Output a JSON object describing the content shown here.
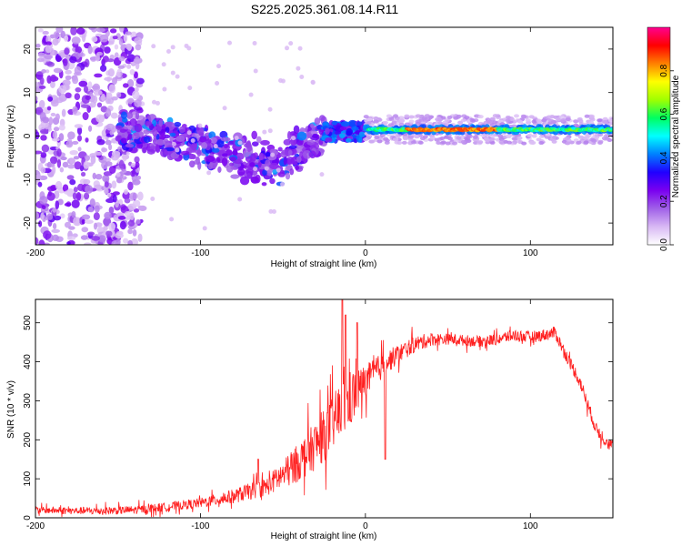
{
  "chart_data": [
    {
      "type": "heatmap",
      "title": "S225.2025.361.08.14.R11",
      "xlabel": "Height of straight line (km)",
      "ylabel": "Frequency (Hz)",
      "xlim": [
        -200,
        150
      ],
      "ylim": [
        -25,
        25
      ],
      "xticks": [
        -200,
        -100,
        0,
        100
      ],
      "yticks": [
        -20,
        -10,
        0,
        10,
        20
      ],
      "colorbar": {
        "label": "Normalized spectral amplitude",
        "range": [
          0,
          1
        ],
        "ticks": [
          "0.0",
          "0.2",
          "0.4",
          "0.6",
          "0.8"
        ],
        "tick_values": [
          0.0,
          0.2,
          0.4,
          0.6,
          0.8
        ],
        "colormap": [
          "#ffffff",
          "#d8b8f4",
          "#a060e8",
          "#7a00f0",
          "#2000ff",
          "#0080ff",
          "#00ffff",
          "#00ff60",
          "#a0ff00",
          "#ffff00",
          "#ff8000",
          "#ff0000",
          "#ff0090"
        ]
      },
      "regions": [
        {
          "x_range": [
            -200,
            -150
          ],
          "freq_center": 0,
          "freq_spread": 25,
          "amplitude": 0.05,
          "note": "sparse noise across all frequencies"
        },
        {
          "x_range": [
            -150,
            -25
          ],
          "freq_center": 2,
          "freq_slope": 0.12,
          "freq_spread": 4,
          "amplitude": 0.15,
          "note": "clustered blobs descending to about -12 Hz near -60 km"
        },
        {
          "x_range": [
            -25,
            0
          ],
          "freq_center": 1,
          "freq_spread": 2,
          "amplitude": 0.25,
          "note": "converging onto line"
        },
        {
          "x_range": [
            0,
            150
          ],
          "freq_center": 1.5,
          "freq_spread": 0.8,
          "amplitude": 0.9,
          "note": "strong narrow band near 1-2 Hz"
        }
      ]
    },
    {
      "type": "line",
      "xlabel": "Height of straight line (km)",
      "ylabel": "SNR (10 * v/v)",
      "xlim": [
        -200,
        150
      ],
      "ylim": [
        0,
        560
      ],
      "xticks": [
        -200,
        -100,
        0,
        100
      ],
      "yticks": [
        0,
        100,
        200,
        300,
        400,
        500
      ],
      "color": "#ff2020",
      "envelope": {
        "x": [
          -200,
          -180,
          -160,
          -140,
          -120,
          -100,
          -80,
          -60,
          -45,
          -35,
          -25,
          -15,
          -5,
          0,
          10,
          20,
          30,
          40,
          50,
          60,
          70,
          80,
          90,
          100,
          110,
          115,
          120,
          130,
          140,
          150
        ],
        "y": [
          20,
          18,
          18,
          20,
          28,
          38,
          55,
          80,
          125,
          165,
          210,
          275,
          325,
          350,
          390,
          420,
          445,
          458,
          458,
          455,
          452,
          458,
          468,
          463,
          470,
          475,
          430,
          350,
          225,
          180
        ]
      },
      "noise_amplitude": [
        {
          "x": -200,
          "a": 12
        },
        {
          "x": -100,
          "a": 18
        },
        {
          "x": -60,
          "a": 35
        },
        {
          "x": -30,
          "a": 90
        },
        {
          "x": -10,
          "a": 110
        },
        {
          "x": 0,
          "a": 60
        },
        {
          "x": 20,
          "a": 35
        },
        {
          "x": 50,
          "a": 20
        },
        {
          "x": 100,
          "a": 22
        },
        {
          "x": 150,
          "a": 25
        }
      ],
      "spikes": [
        {
          "x": -14,
          "y": 560
        },
        {
          "x": -12,
          "y": 520
        },
        {
          "x": -5,
          "y": 500
        },
        {
          "x": 12,
          "y": 150
        },
        {
          "x": -65,
          "y": 150
        }
      ]
    }
  ]
}
